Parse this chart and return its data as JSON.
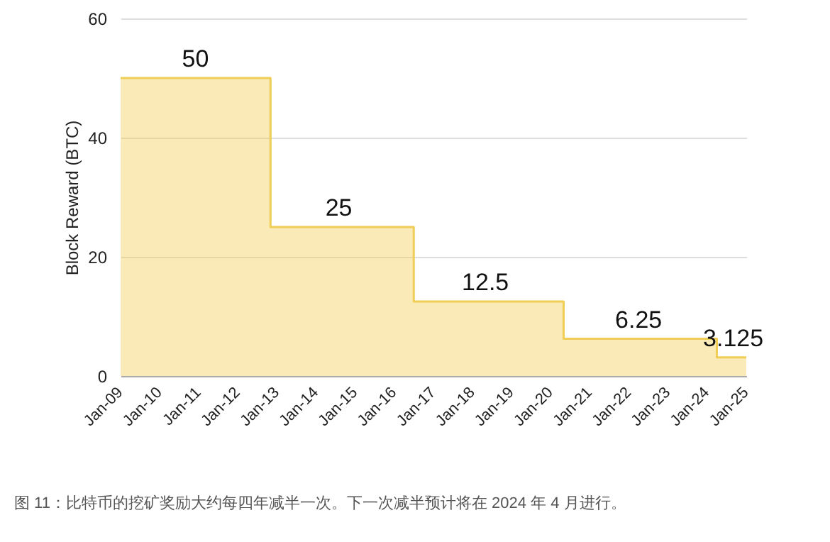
{
  "chart_data": {
    "type": "area",
    "ylabel": "Block Reward (BTC)",
    "x": [
      "2009-01",
      "2010-12",
      "2012-11",
      "2012-11",
      "2014-08",
      "2016-07",
      "2016-07",
      "2018-05",
      "2020-05",
      "2020-05",
      "2022-04",
      "2024-04",
      "2024-04",
      "2024-09",
      "2025-01"
    ],
    "values": [
      50,
      50,
      50,
      25,
      25,
      25,
      12.5,
      12.5,
      12.5,
      6.25,
      6.25,
      6.25,
      3.125,
      3.125,
      3.125
    ],
    "value_labels": [
      null,
      "50",
      null,
      null,
      "25",
      null,
      null,
      "12.5",
      null,
      null,
      "6.25",
      null,
      null,
      "3.125",
      null
    ],
    "color": "#f0cd55",
    "xlim": [
      "2009-01",
      "2025-01"
    ],
    "xticks": [
      {
        "value": "2009-01",
        "label": "Jan-09"
      },
      {
        "value": "2010-01",
        "label": "Jan-10"
      },
      {
        "value": "2011-01",
        "label": "Jan-11"
      },
      {
        "value": "2012-01",
        "label": "Jan-12"
      },
      {
        "value": "2013-01",
        "label": "Jan-13"
      },
      {
        "value": "2014-01",
        "label": "Jan-14"
      },
      {
        "value": "2015-01",
        "label": "Jan-15"
      },
      {
        "value": "2016-01",
        "label": "Jan-16"
      },
      {
        "value": "2017-01",
        "label": "Jan-17"
      },
      {
        "value": "2018-01",
        "label": "Jan-18"
      },
      {
        "value": "2019-01",
        "label": "Jan-19"
      },
      {
        "value": "2020-01",
        "label": "Jan-20"
      },
      {
        "value": "2021-01",
        "label": "Jan-21"
      },
      {
        "value": "2022-01",
        "label": "Jan-22"
      },
      {
        "value": "2023-01",
        "label": "Jan-23"
      },
      {
        "value": "2024-01",
        "label": "Jan-24"
      },
      {
        "value": "2025-01",
        "label": "Jan-25"
      }
    ],
    "ylim": [
      0,
      60
    ],
    "yticks": [
      0,
      20,
      40,
      60
    ],
    "grid": "y",
    "annotations": [
      "图 11：比特币的挖矿奖励大约每四年减半一次。下一次减半预计将在 2024 年 4 月进行。"
    ]
  }
}
